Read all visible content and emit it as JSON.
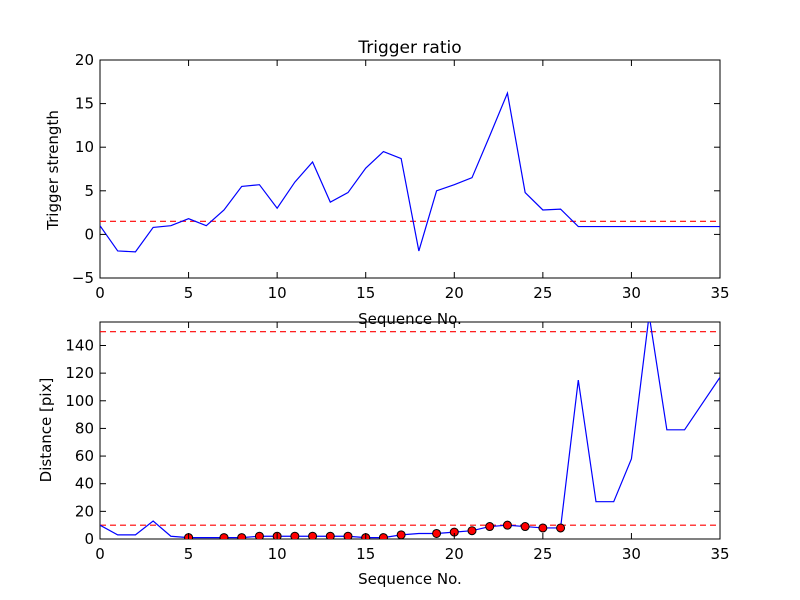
{
  "chart_data": [
    {
      "type": "line",
      "title": "Trigger ratio",
      "xlabel": "Sequence No.",
      "ylabel": "Trigger strength",
      "xlim": [
        0,
        35
      ],
      "ylim": [
        -5,
        20
      ],
      "xticks": [
        0,
        5,
        10,
        15,
        20,
        25,
        30,
        35
      ],
      "yticks": [
        -5,
        0,
        5,
        10,
        15,
        20
      ],
      "grid": false,
      "series": [
        {
          "color": "#0000ff",
          "x": [
            0,
            1,
            2,
            3,
            4,
            5,
            6,
            7,
            8,
            9,
            10,
            11,
            12,
            13,
            14,
            15,
            16,
            17,
            18,
            19,
            20,
            21,
            22,
            23,
            24,
            25,
            26,
            27,
            28,
            29,
            30,
            31,
            32,
            33,
            34,
            35
          ],
          "y": [
            1.0,
            -1.9,
            -2.0,
            0.8,
            1.0,
            1.8,
            1.0,
            2.8,
            5.5,
            5.7,
            3.0,
            6.0,
            8.3,
            3.7,
            4.8,
            7.6,
            9.5,
            8.7,
            -1.9,
            5.0,
            5.7,
            6.5,
            11.3,
            16.2,
            4.8,
            2.8,
            2.9,
            0.9,
            0.9,
            0.9,
            0.9,
            0.9,
            0.9,
            0.9,
            0.9,
            0.9
          ]
        }
      ],
      "hlines": [
        {
          "y": 1.5,
          "color": "#ff0000",
          "style": "dashed"
        }
      ]
    },
    {
      "type": "line",
      "title": "",
      "xlabel": "Sequence No.",
      "ylabel": "Distance [pix]",
      "xlim": [
        0,
        35
      ],
      "ylim": [
        0,
        157
      ],
      "xticks": [
        0,
        5,
        10,
        15,
        20,
        25,
        30,
        35
      ],
      "yticks": [
        0,
        20,
        40,
        60,
        80,
        100,
        120,
        140
      ],
      "grid": false,
      "series": [
        {
          "color": "#0000ff",
          "x": [
            0,
            1,
            2,
            3,
            4,
            5,
            6,
            7,
            8,
            9,
            10,
            11,
            12,
            13,
            14,
            15,
            16,
            17,
            18,
            19,
            20,
            21,
            22,
            23,
            24,
            25,
            26,
            27,
            28,
            29,
            30,
            31,
            32,
            33,
            35
          ],
          "y": [
            10,
            3,
            3,
            13,
            2,
            1,
            1,
            1,
            1,
            2,
            2,
            2,
            2,
            2,
            2,
            1,
            1,
            3,
            4,
            4,
            5,
            6,
            9,
            10,
            9,
            8,
            8,
            115,
            27,
            27,
            58,
            162,
            79,
            79,
            117
          ]
        },
        {
          "color": "#ff0000",
          "marker": "circle",
          "x": [
            5,
            7,
            8,
            9,
            10,
            11,
            12,
            13,
            14,
            15,
            16,
            17,
            19,
            20,
            21,
            22,
            23,
            24,
            25,
            26
          ],
          "y": [
            1,
            1,
            1,
            2,
            2,
            2,
            2,
            2,
            2,
            1,
            1,
            3,
            4,
            5,
            6,
            9,
            10,
            9,
            8,
            8
          ]
        }
      ],
      "hlines": [
        {
          "y": 150,
          "color": "#ff0000",
          "style": "dashed"
        },
        {
          "y": 10,
          "color": "#ff0000",
          "style": "dashed"
        }
      ]
    }
  ]
}
